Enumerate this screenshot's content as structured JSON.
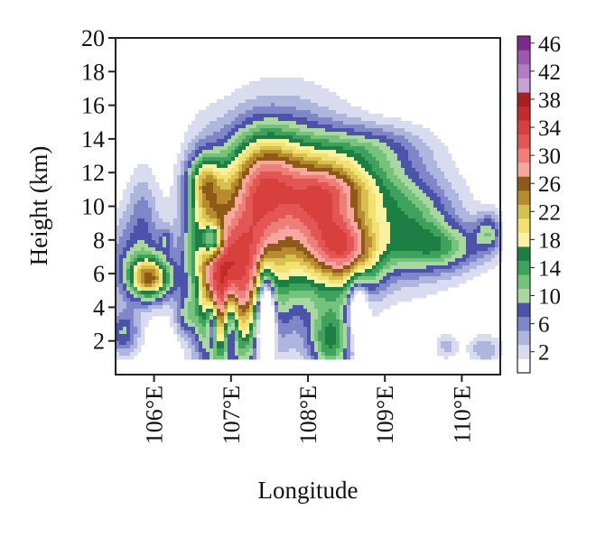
{
  "chart_data": {
    "type": "heatmap",
    "subtype": "filled-contour",
    "xlabel": "Longitude",
    "ylabel": "Height (km)",
    "xlim": [
      105.5,
      110.5
    ],
    "ylim": [
      0,
      20
    ],
    "x_ticks": [
      106,
      107,
      108,
      109,
      110
    ],
    "x_tick_labels": [
      "106°E",
      "107°E",
      "108°E",
      "109°E",
      "110°E"
    ],
    "y_ticks": [
      2,
      4,
      6,
      8,
      10,
      12,
      14,
      16,
      18,
      20
    ],
    "y_tick_labels": [
      "2",
      "4",
      "6",
      "8",
      "10",
      "12",
      "14",
      "16",
      "18",
      "20"
    ],
    "colorbar": {
      "levels": [
        0,
        2,
        4,
        6,
        8,
        10,
        12,
        14,
        16,
        18,
        20,
        22,
        24,
        26,
        28,
        30,
        32,
        34,
        36,
        38,
        40,
        42,
        44,
        46,
        48
      ],
      "colors": [
        "#ffffff",
        "#d8dcee",
        "#aeb6de",
        "#7f87c8",
        "#4d53a8",
        "#a8d8a0",
        "#74c27b",
        "#3fa25c",
        "#1e7f45",
        "#f8f2a0",
        "#f2e070",
        "#d8c04e",
        "#b88c2e",
        "#8e5a18",
        "#f6a8a0",
        "#ee7f78",
        "#e45656",
        "#d8403e",
        "#c62a2a",
        "#a81e22",
        "#c8a2d6",
        "#b07cc4",
        "#9a58b0",
        "#7d2a8a"
      ],
      "tick_labels": [
        "2",
        "6",
        "10",
        "14",
        "18",
        "22",
        "26",
        "30",
        "34",
        "38",
        "42",
        "46"
      ]
    },
    "fields": [
      {
        "x": 107.8,
        "y": 9.5,
        "amp": 18,
        "sx": 0.55,
        "sy": 3.8
      },
      {
        "x": 108.2,
        "y": 9.0,
        "amp": 13,
        "sx": 0.35,
        "sy": 2.5
      },
      {
        "x": 108.55,
        "y": 7.2,
        "amp": 18,
        "sx": 0.3,
        "sy": 1.6
      },
      {
        "x": 108.5,
        "y": 11.2,
        "amp": 12,
        "sx": 0.45,
        "sy": 1.2
      },
      {
        "x": 107.2,
        "y": 6.5,
        "amp": 22,
        "sx": 0.3,
        "sy": 3.8
      },
      {
        "x": 106.85,
        "y": 4.5,
        "amp": 20,
        "sx": 0.22,
        "sy": 3.0
      },
      {
        "x": 107.45,
        "y": 12.0,
        "amp": 14,
        "sx": 0.35,
        "sy": 2.0
      },
      {
        "x": 106.65,
        "y": 9.0,
        "amp": 14,
        "sx": 0.2,
        "sy": 3.0
      },
      {
        "x": 106.65,
        "y": 11.5,
        "amp": 10,
        "sx": 0.15,
        "sy": 1.0
      },
      {
        "x": 109.3,
        "y": 9.0,
        "amp": 14,
        "sx": 0.45,
        "sy": 2.2
      },
      {
        "x": 109.8,
        "y": 7.5,
        "amp": 9,
        "sx": 0.4,
        "sy": 1.0
      },
      {
        "x": 108.8,
        "y": 13.5,
        "amp": 8,
        "sx": 0.5,
        "sy": 1.0
      },
      {
        "x": 105.95,
        "y": 5.7,
        "amp": 22,
        "sx": 0.2,
        "sy": 0.9
      },
      {
        "x": 105.75,
        "y": 7.0,
        "amp": 8,
        "sx": 0.3,
        "sy": 1.8
      },
      {
        "x": 105.85,
        "y": 10.0,
        "amp": 5,
        "sx": 0.15,
        "sy": 1.8
      },
      {
        "x": 106.15,
        "y": 8.0,
        "amp": 6,
        "sx": 0.06,
        "sy": 0.5
      },
      {
        "x": 110.35,
        "y": 8.5,
        "amp": 9,
        "sx": 0.12,
        "sy": 0.8
      },
      {
        "x": 109.8,
        "y": 1.7,
        "amp": 5,
        "sx": 0.1,
        "sy": 0.5
      },
      {
        "x": 110.3,
        "y": 1.5,
        "amp": 6,
        "sx": 0.15,
        "sy": 0.6
      },
      {
        "x": 106.4,
        "y": 3.5,
        "amp": 7,
        "sx": 0.1,
        "sy": 0.8
      },
      {
        "x": 105.6,
        "y": 2.5,
        "amp": 10,
        "sx": 0.15,
        "sy": 1.0
      },
      {
        "x": 108.3,
        "y": 2.0,
        "amp": 15,
        "sx": 0.2,
        "sy": 1.5
      },
      {
        "x": 107.45,
        "y": 3.5,
        "amp": -30,
        "sx": 0.08,
        "sy": 1.8
      },
      {
        "x": 107.0,
        "y": 3.0,
        "amp": -16,
        "sx": 0.07,
        "sy": 1.5
      },
      {
        "x": 106.75,
        "y": 3.0,
        "amp": -14,
        "sx": 0.05,
        "sy": 1.0
      },
      {
        "x": 106.75,
        "y": 8.0,
        "amp": -18,
        "sx": 0.1,
        "sy": 0.7
      },
      {
        "x": 108.65,
        "y": 3.8,
        "amp": -12,
        "sx": 0.08,
        "sy": 1.5
      }
    ]
  }
}
